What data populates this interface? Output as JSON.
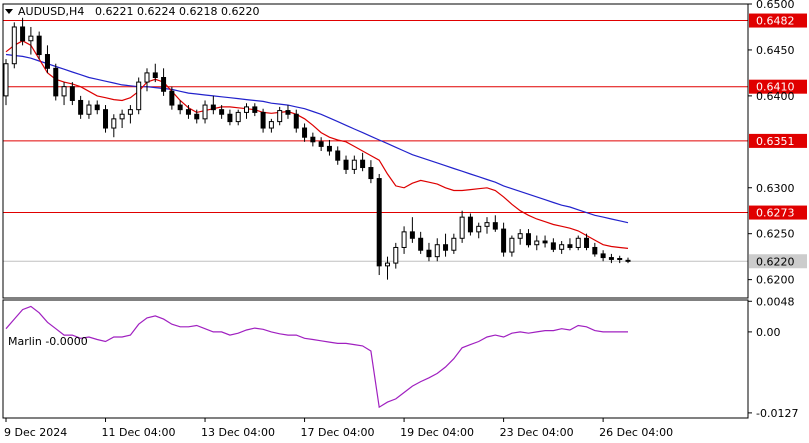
{
  "header": {
    "symbol": "AUDUSD,H4",
    "ohlc": "0.6221 0.6224 0.6218 0.6220"
  },
  "indicator": {
    "label": "Marlin -0.0000"
  },
  "colors": {
    "up_fill": "#ffffff",
    "candle_stroke": "#000000",
    "ma_fast": "#dd0000",
    "ma_slow": "#2222cc",
    "levels": "#e00000",
    "oscillator": "#a020c0",
    "price_tag": "#cccccc"
  },
  "chart_data": [
    {
      "type": "candlestick",
      "title": "AUDUSD,H4",
      "ylim": [
        0.618,
        0.65
      ],
      "y_ticks": [
        "0.6500",
        "0.6450",
        "0.6400",
        "0.6300",
        "0.6250",
        "0.6200"
      ],
      "x_ticks": [
        "9 Dec 2024",
        "11 Dec 04:00",
        "13 Dec 04:00",
        "17 Dec 04:00",
        "19 Dec 04:00",
        "23 Dec 04:00",
        "26 Dec 04:00"
      ],
      "levels": [
        {
          "value": 0.6482,
          "label": "0.6482"
        },
        {
          "value": 0.641,
          "label": "0.6410"
        },
        {
          "value": 0.6351,
          "label": "0.6351"
        },
        {
          "value": 0.6273,
          "label": "0.6273"
        }
      ],
      "current_price": {
        "value": 0.622,
        "label": "0.6220"
      },
      "candles": [
        [
          0.64,
          0.644,
          0.639,
          0.6435
        ],
        [
          0.6435,
          0.648,
          0.643,
          0.6475
        ],
        [
          0.6475,
          0.6485,
          0.6455,
          0.646
        ],
        [
          0.646,
          0.6475,
          0.6445,
          0.6465
        ],
        [
          0.6465,
          0.647,
          0.644,
          0.6445
        ],
        [
          0.6445,
          0.6455,
          0.6425,
          0.643
        ],
        [
          0.643,
          0.6435,
          0.6395,
          0.64
        ],
        [
          0.64,
          0.6415,
          0.639,
          0.641
        ],
        [
          0.641,
          0.6415,
          0.639,
          0.6395
        ],
        [
          0.6395,
          0.64,
          0.6375,
          0.638
        ],
        [
          0.638,
          0.6395,
          0.6375,
          0.639
        ],
        [
          0.639,
          0.6395,
          0.638,
          0.6385
        ],
        [
          0.6385,
          0.639,
          0.636,
          0.6365
        ],
        [
          0.6365,
          0.638,
          0.6355,
          0.6375
        ],
        [
          0.6375,
          0.6385,
          0.6365,
          0.638
        ],
        [
          0.638,
          0.639,
          0.637,
          0.6385
        ],
        [
          0.6385,
          0.642,
          0.638,
          0.6415
        ],
        [
          0.6415,
          0.643,
          0.6405,
          0.6425
        ],
        [
          0.6425,
          0.6435,
          0.6415,
          0.642
        ],
        [
          0.642,
          0.643,
          0.64,
          0.6405
        ],
        [
          0.6405,
          0.641,
          0.6385,
          0.639
        ],
        [
          0.639,
          0.6395,
          0.638,
          0.6385
        ],
        [
          0.6385,
          0.639,
          0.6375,
          0.638
        ],
        [
          0.638,
          0.6385,
          0.637,
          0.6375
        ],
        [
          0.6375,
          0.6395,
          0.637,
          0.639
        ],
        [
          0.639,
          0.64,
          0.638,
          0.6385
        ],
        [
          0.6385,
          0.639,
          0.6375,
          0.638
        ],
        [
          0.638,
          0.6385,
          0.6368,
          0.6372
        ],
        [
          0.6372,
          0.6385,
          0.6368,
          0.6382
        ],
        [
          0.6382,
          0.6392,
          0.6375,
          0.6388
        ],
        [
          0.6388,
          0.6392,
          0.6378,
          0.6382
        ],
        [
          0.6382,
          0.6386,
          0.636,
          0.6365
        ],
        [
          0.6365,
          0.6375,
          0.636,
          0.6372
        ],
        [
          0.6372,
          0.6388,
          0.6368,
          0.6384
        ],
        [
          0.6384,
          0.639,
          0.6375,
          0.638
        ],
        [
          0.638,
          0.6385,
          0.636,
          0.6365
        ],
        [
          0.6365,
          0.637,
          0.635,
          0.6355
        ],
        [
          0.6355,
          0.636,
          0.6345,
          0.635
        ],
        [
          0.635,
          0.6355,
          0.634,
          0.6345
        ],
        [
          0.6345,
          0.6352,
          0.6335,
          0.634
        ],
        [
          0.634,
          0.6345,
          0.6325,
          0.633
        ],
        [
          0.633,
          0.6335,
          0.6315,
          0.632
        ],
        [
          0.632,
          0.6335,
          0.6315,
          0.633
        ],
        [
          0.633,
          0.6338,
          0.6318,
          0.6322
        ],
        [
          0.6322,
          0.633,
          0.6305,
          0.631
        ],
        [
          0.631,
          0.6315,
          0.6205,
          0.6215
        ],
        [
          0.6215,
          0.6225,
          0.62,
          0.6218
        ],
        [
          0.6218,
          0.624,
          0.6212,
          0.6235
        ],
        [
          0.6235,
          0.6258,
          0.6228,
          0.6252
        ],
        [
          0.6252,
          0.6268,
          0.624,
          0.6245
        ],
        [
          0.6245,
          0.6252,
          0.6228,
          0.6232
        ],
        [
          0.6232,
          0.624,
          0.622,
          0.6225
        ],
        [
          0.6225,
          0.6245,
          0.622,
          0.6238
        ],
        [
          0.6238,
          0.625,
          0.6225,
          0.6232
        ],
        [
          0.6232,
          0.625,
          0.6228,
          0.6245
        ],
        [
          0.6245,
          0.6275,
          0.624,
          0.6268
        ],
        [
          0.6268,
          0.6272,
          0.6248,
          0.6252
        ],
        [
          0.6252,
          0.6262,
          0.6245,
          0.6258
        ],
        [
          0.6258,
          0.6268,
          0.625,
          0.6262
        ],
        [
          0.6262,
          0.627,
          0.6252,
          0.6255
        ],
        [
          0.6255,
          0.6262,
          0.6225,
          0.623
        ],
        [
          0.623,
          0.6248,
          0.6225,
          0.6245
        ],
        [
          0.6245,
          0.6255,
          0.6238,
          0.625
        ],
        [
          0.625,
          0.6255,
          0.6235,
          0.6238
        ],
        [
          0.6238,
          0.6248,
          0.6232,
          0.6242
        ],
        [
          0.6242,
          0.6248,
          0.6235,
          0.624
        ],
        [
          0.624,
          0.6245,
          0.623,
          0.6233
        ],
        [
          0.6233,
          0.6242,
          0.6228,
          0.6238
        ],
        [
          0.6238,
          0.6245,
          0.6232,
          0.6235
        ],
        [
          0.6235,
          0.6248,
          0.6232,
          0.6245
        ],
        [
          0.6245,
          0.625,
          0.6232,
          0.6235
        ],
        [
          0.6235,
          0.624,
          0.6225,
          0.6228
        ],
        [
          0.6228,
          0.6232,
          0.622,
          0.6224
        ],
        [
          0.6224,
          0.6228,
          0.6218,
          0.6222
        ],
        [
          0.6222,
          0.6226,
          0.6218,
          0.6223
        ],
        [
          0.6221,
          0.6224,
          0.6218,
          0.622
        ]
      ],
      "ma_fast": [
        0.6448,
        0.6455,
        0.646,
        0.6455,
        0.644,
        0.6425,
        0.6418,
        0.6415,
        0.6413,
        0.641,
        0.6405,
        0.64,
        0.6398,
        0.6396,
        0.6395,
        0.6398,
        0.6405,
        0.6415,
        0.6418,
        0.6415,
        0.6405,
        0.6395,
        0.6387,
        0.6382,
        0.6384,
        0.6386,
        0.6388,
        0.6388,
        0.6387,
        0.6386,
        0.6385,
        0.6382,
        0.6381,
        0.6382,
        0.6383,
        0.638,
        0.6375,
        0.6368,
        0.636,
        0.6355,
        0.6352,
        0.635,
        0.6345,
        0.634,
        0.6335,
        0.633,
        0.6315,
        0.6302,
        0.63,
        0.6305,
        0.6308,
        0.6306,
        0.6304,
        0.63,
        0.6297,
        0.6297,
        0.6298,
        0.6299,
        0.63,
        0.6297,
        0.629,
        0.6282,
        0.6275,
        0.627,
        0.6266,
        0.6263,
        0.626,
        0.6258,
        0.6256,
        0.6253,
        0.6248,
        0.6243,
        0.6238,
        0.6236,
        0.6235,
        0.6234
      ],
      "ma_slow": [
        0.6445,
        0.6444,
        0.6443,
        0.6441,
        0.6438,
        0.6435,
        0.6432,
        0.6429,
        0.6426,
        0.6423,
        0.642,
        0.6418,
        0.6416,
        0.6414,
        0.6412,
        0.6411,
        0.641,
        0.641,
        0.6409,
        0.6408,
        0.6407,
        0.6405,
        0.6403,
        0.6402,
        0.6401,
        0.64,
        0.6399,
        0.6398,
        0.6397,
        0.6396,
        0.6395,
        0.6394,
        0.6392,
        0.6391,
        0.639,
        0.6388,
        0.6386,
        0.6383,
        0.638,
        0.6376,
        0.6372,
        0.6368,
        0.6364,
        0.636,
        0.6356,
        0.6352,
        0.6348,
        0.6344,
        0.634,
        0.6336,
        0.6333,
        0.633,
        0.6327,
        0.6324,
        0.6321,
        0.6318,
        0.6315,
        0.6312,
        0.6309,
        0.6306,
        0.6302,
        0.6299,
        0.6296,
        0.6293,
        0.629,
        0.6287,
        0.6284,
        0.6281,
        0.6279,
        0.6276,
        0.6273,
        0.627,
        0.6268,
        0.6266,
        0.6264,
        0.6262
      ]
    },
    {
      "type": "line",
      "title": "Marlin -0.0000",
      "ylim": [
        -0.0135,
        0.005
      ],
      "y_ticks": [
        "0.0048",
        "0.00",
        "-0.0127"
      ],
      "values": [
        0.0005,
        0.002,
        0.0035,
        0.004,
        0.003,
        0.0015,
        0.0005,
        -0.0005,
        -0.0005,
        -0.001,
        -0.0008,
        -0.0012,
        -0.0015,
        -0.0008,
        -0.0008,
        -0.0005,
        0.0012,
        0.0022,
        0.0025,
        0.002,
        0.0012,
        0.0008,
        0.0008,
        0.001,
        0.0005,
        0.0,
        0.0,
        -0.0005,
        -0.0002,
        0.0003,
        0.0006,
        0.0004,
        0.0,
        -0.0003,
        -0.0005,
        -0.0005,
        -0.001,
        -0.0012,
        -0.0014,
        -0.0016,
        -0.0018,
        -0.0018,
        -0.002,
        -0.0022,
        -0.003,
        -0.0118,
        -0.011,
        -0.0105,
        -0.0095,
        -0.0085,
        -0.0078,
        -0.0072,
        -0.0065,
        -0.0055,
        -0.0042,
        -0.0025,
        -0.002,
        -0.0015,
        -0.0008,
        -0.0005,
        -0.0008,
        -0.0002,
        0.0,
        -0.0002,
        0.0,
        0.0002,
        0.0002,
        0.0005,
        0.0003,
        0.001,
        0.0008,
        0.0002,
        0.0,
        0.0,
        0.0,
        0.0
      ]
    }
  ]
}
